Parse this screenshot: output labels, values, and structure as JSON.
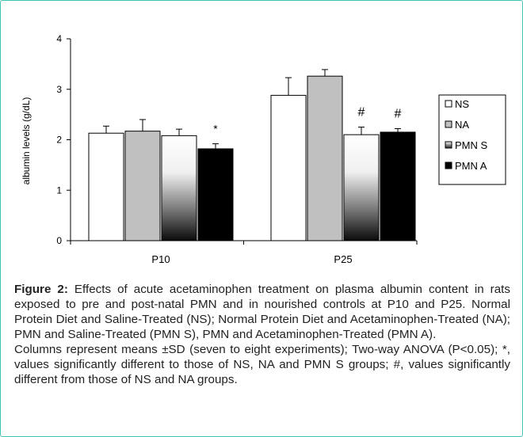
{
  "chart_data": {
    "type": "bar",
    "categories": [
      "P10",
      "P25"
    ],
    "series": [
      {
        "name": "NS",
        "values": [
          2.13,
          2.88
        ],
        "sd": [
          0.14,
          0.35
        ],
        "fill": "#ffffff"
      },
      {
        "name": "NA",
        "values": [
          2.17,
          3.26
        ],
        "sd": [
          0.23,
          0.13
        ],
        "fill": "#c0c0c0"
      },
      {
        "name": "PMN S",
        "values": [
          2.08,
          2.1
        ],
        "sd": [
          0.13,
          0.15
        ],
        "fill": "gradient"
      },
      {
        "name": "PMN A",
        "values": [
          1.82,
          2.15
        ],
        "sd": [
          0.1,
          0.07
        ],
        "fill": "#000000"
      }
    ],
    "annotations": [
      {
        "category": "P10",
        "series": "PMN A",
        "text": "*"
      },
      {
        "category": "P25",
        "series": "PMN S",
        "text": "#"
      },
      {
        "category": "P25",
        "series": "PMN A",
        "text": "#"
      }
    ],
    "ylabel": "albumin levels (g/dL)",
    "xlabel": "",
    "ylim": [
      0,
      4
    ],
    "yticks": [
      0,
      1,
      2,
      3,
      4
    ],
    "grid": false,
    "legend_position": "right"
  },
  "caption": {
    "figure_label": "Figure 2:",
    "text1": " Effects of acute acetaminophen treatment on plasma albumin content in rats exposed to pre and post-natal PMN and in nourished controls at P10 and P25. Normal Protein Diet and Saline-Treated (NS); Normal Protein Diet and Acetaminophen-Treated (NA); PMN and Saline-Treated (PMN S), PMN and Acetaminophen-Treated (PMN A).",
    "text2": "Columns represent means ±SD (seven to eight experiments); Two-way ANOVA (P<0.05); *, values significantly different to those of NS, NA and PMN S groups; #, values significantly different from those of NS and NA groups."
  },
  "colors": {
    "frame_border": "#3fc3b3",
    "axis": "#000000",
    "text": "#222222"
  }
}
